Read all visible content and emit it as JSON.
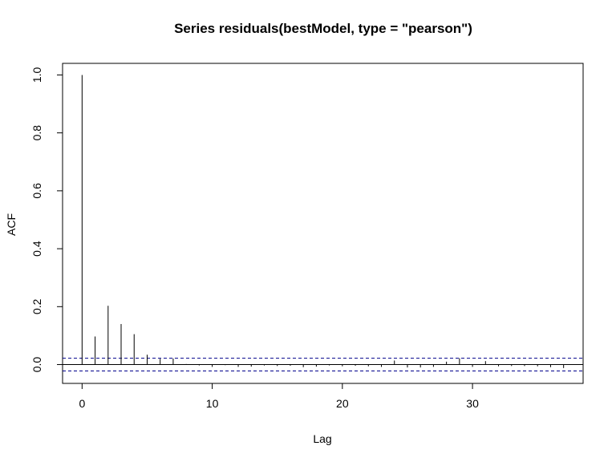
{
  "chart_data": {
    "type": "bar",
    "subtype": "acf-lollipop",
    "title": "Series  residuals(bestModel, type = \"pearson\")",
    "xlabel": "Lag",
    "ylabel": "ACF",
    "xlim": [
      -1.5,
      38.5
    ],
    "ylim": [
      -0.065,
      1.04
    ],
    "x_ticks": [
      0,
      10,
      20,
      30
    ],
    "x_tick_labels": [
      "0",
      "10",
      "20",
      "30"
    ],
    "y_ticks": [
      0.0,
      0.2,
      0.4,
      0.6,
      0.8,
      1.0
    ],
    "y_tick_labels": [
      "0.0",
      "0.2",
      "0.4",
      "0.6",
      "0.8",
      "1.0"
    ],
    "lag": [
      0,
      1,
      2,
      3,
      4,
      5,
      6,
      7,
      8,
      9,
      10,
      11,
      12,
      13,
      14,
      15,
      16,
      17,
      18,
      19,
      20,
      21,
      22,
      23,
      24,
      25,
      26,
      27,
      28,
      29,
      30,
      31,
      32,
      33,
      34,
      35,
      36,
      37
    ],
    "acf": [
      1.0,
      0.097,
      0.203,
      0.14,
      0.105,
      0.034,
      0.02,
      0.021,
      0.002,
      -0.003,
      -0.008,
      -0.002,
      -0.008,
      -0.007,
      -0.003,
      -0.005,
      -0.004,
      -0.009,
      -0.007,
      -0.003,
      -0.006,
      -0.004,
      -0.006,
      -0.008,
      0.014,
      -0.01,
      -0.01,
      -0.008,
      0.01,
      0.022,
      -0.008,
      0.012,
      -0.006,
      -0.005,
      -0.005,
      -0.006,
      -0.009,
      -0.012
    ],
    "conf_bounds": [
      0.022,
      -0.022
    ],
    "colors": {
      "spike": "#000000",
      "confidence_line": "#00008b",
      "zero_line": "#000000"
    }
  }
}
